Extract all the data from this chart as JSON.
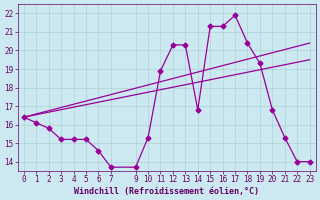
{
  "line1_x": [
    0,
    1,
    2,
    3,
    4,
    5,
    6,
    7,
    9,
    10,
    11,
    12,
    13,
    14,
    15,
    16,
    17,
    18,
    19,
    20,
    21,
    22,
    23
  ],
  "line1_y": [
    16.4,
    16.1,
    15.8,
    15.2,
    15.2,
    15.2,
    14.6,
    13.7,
    13.7,
    15.3,
    18.9,
    20.3,
    20.3,
    16.8,
    21.3,
    21.3,
    21.9,
    20.4,
    19.3,
    16.8,
    15.3,
    14.0,
    14.0
  ],
  "line2_x": [
    0,
    23
  ],
  "line2_y": [
    16.4,
    20.4
  ],
  "line3_x": [
    0,
    23
  ],
  "line3_y": [
    16.4,
    19.5
  ],
  "color": "#990099",
  "bg_color": "#cce8f0",
  "grid_color": "#aacccc",
  "xlabel": "Windchill (Refroidissement éolien,°C)",
  "xlim": [
    -0.5,
    23.5
  ],
  "ylim": [
    13.5,
    22.5
  ],
  "xticks": [
    0,
    1,
    2,
    3,
    4,
    5,
    6,
    7,
    9,
    10,
    11,
    12,
    13,
    14,
    15,
    16,
    17,
    18,
    19,
    20,
    21,
    22,
    23
  ],
  "yticks": [
    14,
    15,
    16,
    17,
    18,
    19,
    20,
    21,
    22
  ],
  "marker": "D",
  "markersize": 2.5,
  "linewidth": 0.9,
  "xlabel_color": "#660066",
  "tick_color": "#660066",
  "tick_fontsize": 5.5,
  "xlabel_fontsize": 6.0
}
